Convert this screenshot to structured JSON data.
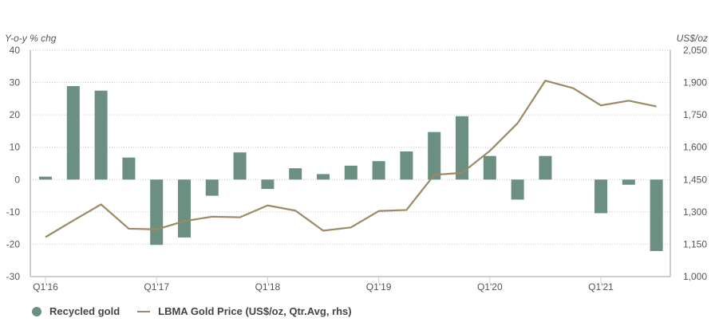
{
  "chart_data": {
    "type": "bar+line",
    "title": "",
    "categories": [
      "Q1'16",
      "Q2'16",
      "Q3'16",
      "Q4'16",
      "Q1'17",
      "Q2'17",
      "Q3'17",
      "Q4'17",
      "Q1'18",
      "Q2'18",
      "Q3'18",
      "Q4'18",
      "Q1'19",
      "Q2'19",
      "Q3'19",
      "Q4'19",
      "Q1'20",
      "Q2'20",
      "Q3'20",
      "Q4'20",
      "Q1'21",
      "Q2'21",
      "Q3'21"
    ],
    "xtick_labels": [
      {
        "index": 0,
        "label": "Q1'16"
      },
      {
        "index": 4,
        "label": "Q1'17"
      },
      {
        "index": 8,
        "label": "Q1'18"
      },
      {
        "index": 12,
        "label": "Q1'19"
      },
      {
        "index": 16,
        "label": "Q1'20"
      },
      {
        "index": 20,
        "label": "Q1'21"
      }
    ],
    "left_axis": {
      "label": "Y-o-y % chg",
      "ylim": [
        -30,
        40
      ],
      "ticks": [
        40,
        30,
        20,
        10,
        0,
        -10,
        -20,
        -30
      ],
      "tick_labels": [
        "40",
        "30",
        "20",
        "10",
        "0",
        "-10",
        "-20",
        "-30"
      ]
    },
    "right_axis": {
      "label": "US$/oz",
      "ylim": [
        1000,
        2050
      ],
      "ticks": [
        2050,
        1900,
        1750,
        1600,
        1450,
        1300,
        1150,
        1000
      ],
      "tick_labels": [
        "2,050",
        "1,900",
        "1,750",
        "1,600",
        "1,450",
        "1,300",
        "1,150",
        "1,000"
      ]
    },
    "grid": true,
    "series": [
      {
        "name": "Recycled gold",
        "type": "bar",
        "axis": "left",
        "color": "#6b8f80",
        "values": [
          0.9,
          28.9,
          27.5,
          6.8,
          -20.2,
          -17.9,
          -5.0,
          8.4,
          -2.9,
          3.5,
          1.7,
          4.3,
          5.7,
          8.7,
          14.7,
          19.6,
          7.3,
          -6.2,
          7.3,
          null,
          -10.4,
          -1.6,
          -22.1
        ]
      },
      {
        "name": "LBMA Gold Price (US$/oz, Qtr.Avg, rhs)",
        "type": "line",
        "axis": "right",
        "color": "#9a8a66",
        "values": [
          1183,
          1260,
          1335,
          1222,
          1219,
          1257,
          1278,
          1275,
          1330,
          1306,
          1213,
          1228,
          1304,
          1309,
          1472,
          1481,
          1583,
          1711,
          1909,
          1874,
          1794,
          1816,
          1789
        ]
      }
    ],
    "legend": {
      "placement": "bottom-left",
      "entries": [
        {
          "label": "Recycled gold",
          "marker": "circle",
          "color": "#6b8f80"
        },
        {
          "label": "LBMA Gold Price (US$/oz, Qtr.Avg, rhs)",
          "marker": "line",
          "color": "#9a8a66"
        }
      ]
    }
  }
}
